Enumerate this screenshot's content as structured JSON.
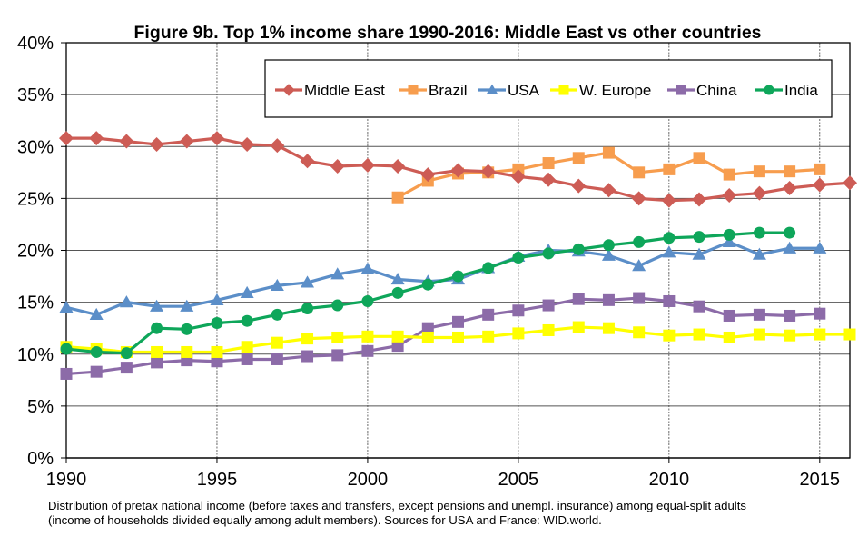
{
  "chart_data": {
    "type": "line",
    "title": "Figure 9b. Top 1% income share 1990-2016: Middle East vs other countries",
    "xlabel": "",
    "ylabel": "",
    "x": [
      1990,
      1991,
      1992,
      1993,
      1994,
      1995,
      1996,
      1997,
      1998,
      1999,
      2000,
      2001,
      2002,
      2003,
      2004,
      2005,
      2006,
      2007,
      2008,
      2009,
      2010,
      2011,
      2012,
      2013,
      2014,
      2015,
      2016
    ],
    "xlim": [
      1990,
      2016
    ],
    "ylim": [
      0,
      40
    ],
    "x_ticks": [
      1990,
      1995,
      2000,
      2005,
      2010,
      2015
    ],
    "x_tick_labels": [
      "1990",
      "1995",
      "2000",
      "2005",
      "2010",
      "2015"
    ],
    "y_ticks": [
      0,
      5,
      10,
      15,
      20,
      25,
      30,
      35,
      40
    ],
    "y_tick_labels": [
      "0%",
      "5%",
      "10%",
      "15%",
      "20%",
      "25%",
      "30%",
      "35%",
      "40%"
    ],
    "grid": "horizontal solid at y ticks; vertical dashed at x ticks",
    "legend_position": "top-right",
    "series": [
      {
        "name": "Middle East",
        "color": "#cd5c55",
        "marker": "diamond",
        "values": [
          30.8,
          30.8,
          30.5,
          30.2,
          30.5,
          30.8,
          30.2,
          30.1,
          28.6,
          28.1,
          28.2,
          28.1,
          27.3,
          27.7,
          27.6,
          27.1,
          26.8,
          26.2,
          25.8,
          25.0,
          24.8,
          24.9,
          25.3,
          25.5,
          26.0,
          26.3,
          26.5
        ]
      },
      {
        "name": "Brazil",
        "color": "#f79d4e",
        "marker": "square",
        "values": [
          null,
          null,
          null,
          null,
          null,
          null,
          null,
          null,
          null,
          null,
          null,
          25.1,
          26.7,
          27.4,
          27.5,
          27.8,
          28.4,
          28.9,
          29.4,
          27.5,
          27.8,
          28.9,
          27.3,
          27.6,
          27.6,
          27.8,
          null
        ]
      },
      {
        "name": "USA",
        "color": "#5b8ec8",
        "marker": "triangle",
        "values": [
          14.5,
          13.8,
          15.0,
          14.6,
          14.6,
          15.2,
          15.9,
          16.6,
          16.9,
          17.7,
          18.2,
          17.2,
          17.0,
          17.2,
          18.3,
          19.4,
          20.0,
          19.9,
          19.5,
          18.5,
          19.8,
          19.6,
          20.8,
          19.6,
          20.2,
          20.2,
          null
        ]
      },
      {
        "name": "W. Europe",
        "color": "#ffff00",
        "marker": "square",
        "values": [
          10.7,
          10.5,
          10.2,
          10.2,
          10.2,
          10.2,
          10.7,
          11.1,
          11.5,
          11.6,
          11.7,
          11.7,
          11.6,
          11.6,
          11.7,
          12.0,
          12.3,
          12.6,
          12.5,
          12.1,
          11.8,
          11.9,
          11.6,
          11.9,
          11.8,
          11.9,
          11.9
        ]
      },
      {
        "name": "China",
        "color": "#8c6ba8",
        "marker": "square",
        "values": [
          8.1,
          8.3,
          8.7,
          9.2,
          9.4,
          9.3,
          9.5,
          9.5,
          9.8,
          9.9,
          10.3,
          10.8,
          12.5,
          13.1,
          13.8,
          14.2,
          14.7,
          15.3,
          15.2,
          15.4,
          15.1,
          14.6,
          13.7,
          13.8,
          13.7,
          13.9,
          null
        ]
      },
      {
        "name": "India",
        "color": "#0ea65a",
        "marker": "circle",
        "values": [
          10.5,
          10.2,
          10.1,
          12.5,
          12.4,
          13.0,
          13.2,
          13.8,
          14.4,
          14.7,
          15.1,
          15.9,
          16.7,
          17.5,
          18.3,
          19.3,
          19.7,
          20.1,
          20.5,
          20.8,
          21.2,
          21.3,
          21.5,
          21.7,
          21.7,
          null,
          null
        ]
      }
    ]
  },
  "footnote": {
    "line1": "Distribution of pretax national income (before taxes and transfers, except pensions and unempl. insurance) among equal-split adults",
    "line2": "(income of households divided equally among adult members). Sources for USA and France: WID.world."
  }
}
